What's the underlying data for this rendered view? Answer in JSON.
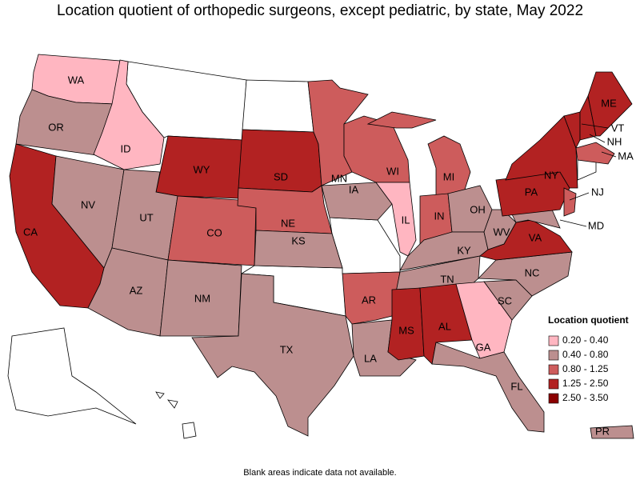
{
  "title": "Location quotient of orthopedic surgeons, except pediatric, by state, May 2022",
  "footnote": "Blank areas indicate data not available.",
  "legend": {
    "title": "Location quotient",
    "items": [
      {
        "label": "0.20 - 0.40",
        "color": "#ffb6c1"
      },
      {
        "label": "0.40 - 0.80",
        "color": "#bc8f8f"
      },
      {
        "label": "0.80 - 1.25",
        "color": "#cd5c5c"
      },
      {
        "label": "1.25 - 2.50",
        "color": "#b22222"
      },
      {
        "label": "2.50 - 3.50",
        "color": "#8b0000"
      }
    ]
  },
  "states": [
    {
      "abbr": "WA",
      "bin": 0
    },
    {
      "abbr": "OR",
      "bin": 1
    },
    {
      "abbr": "CA",
      "bin": 3
    },
    {
      "abbr": "NV",
      "bin": 1
    },
    {
      "abbr": "ID",
      "bin": 0
    },
    {
      "abbr": "WY",
      "bin": 3
    },
    {
      "abbr": "UT",
      "bin": 1
    },
    {
      "abbr": "AZ",
      "bin": 1
    },
    {
      "abbr": "CO",
      "bin": 2
    },
    {
      "abbr": "NM",
      "bin": 1
    },
    {
      "abbr": "SD",
      "bin": 3
    },
    {
      "abbr": "NE",
      "bin": 2
    },
    {
      "abbr": "KS",
      "bin": 1
    },
    {
      "abbr": "TX",
      "bin": 1
    },
    {
      "abbr": "MN",
      "bin": 2
    },
    {
      "abbr": "IA",
      "bin": 1
    },
    {
      "abbr": "AR",
      "bin": 2
    },
    {
      "abbr": "LA",
      "bin": 1
    },
    {
      "abbr": "WI",
      "bin": 2
    },
    {
      "abbr": "IL",
      "bin": 0
    },
    {
      "abbr": "MI",
      "bin": 2
    },
    {
      "abbr": "IN",
      "bin": 2
    },
    {
      "abbr": "OH",
      "bin": 1
    },
    {
      "abbr": "KY",
      "bin": 1
    },
    {
      "abbr": "TN",
      "bin": 1
    },
    {
      "abbr": "MS",
      "bin": 3
    },
    {
      "abbr": "AL",
      "bin": 3
    },
    {
      "abbr": "GA",
      "bin": 0
    },
    {
      "abbr": "FL",
      "bin": 1
    },
    {
      "abbr": "SC",
      "bin": 1
    },
    {
      "abbr": "NC",
      "bin": 1
    },
    {
      "abbr": "VA",
      "bin": 3
    },
    {
      "abbr": "WV",
      "bin": 1
    },
    {
      "abbr": "MD",
      "bin": 1
    },
    {
      "abbr": "PA",
      "bin": 3
    },
    {
      "abbr": "NJ",
      "bin": 2
    },
    {
      "abbr": "NY",
      "bin": 3
    },
    {
      "abbr": "VT",
      "bin": 3
    },
    {
      "abbr": "NH",
      "bin": 3
    },
    {
      "abbr": "ME",
      "bin": 3
    },
    {
      "abbr": "MA",
      "bin": 2
    },
    {
      "abbr": "PR",
      "bin": 1
    }
  ]
}
